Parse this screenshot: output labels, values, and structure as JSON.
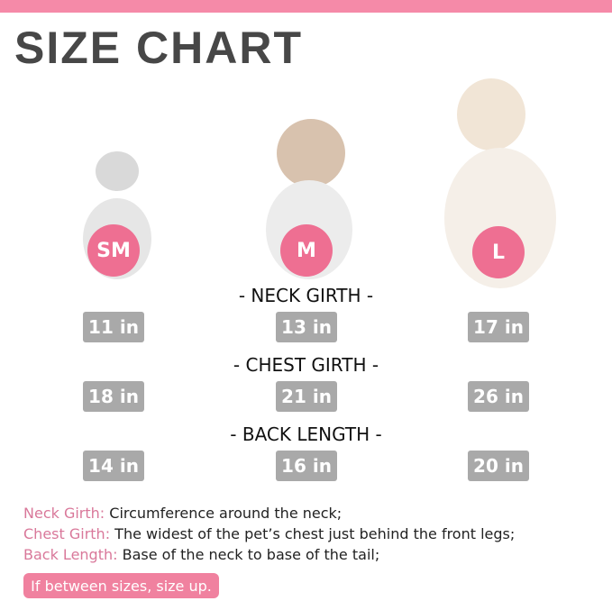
{
  "title": "SIZE CHART",
  "colors": {
    "accent": "#f58aa8",
    "circle": "#ee6f92",
    "box": "#a9a9a9",
    "legend_key": "#d9789a"
  },
  "sizes": [
    "SM",
    "M",
    "L"
  ],
  "measurements": [
    {
      "heading": "- NECK GIRTH -",
      "values": [
        "11 in",
        "13 in",
        "17 in"
      ]
    },
    {
      "heading": "- CHEST GIRTH -",
      "values": [
        "18 in",
        "21 in",
        "26 in"
      ]
    },
    {
      "heading": "- BACK LENGTH -",
      "values": [
        "14 in",
        "16 in",
        "20 in"
      ]
    }
  ],
  "legend": [
    {
      "key": "Neck Girth:",
      "text": " Circumference around the neck;"
    },
    {
      "key": "Chest Girth:",
      "text": " The widest of the pet’s chest just behind the front legs;"
    },
    {
      "key": "Back Length:",
      "text": " Base of the neck to base of the tail;"
    }
  ],
  "note": "If between sizes, size up."
}
